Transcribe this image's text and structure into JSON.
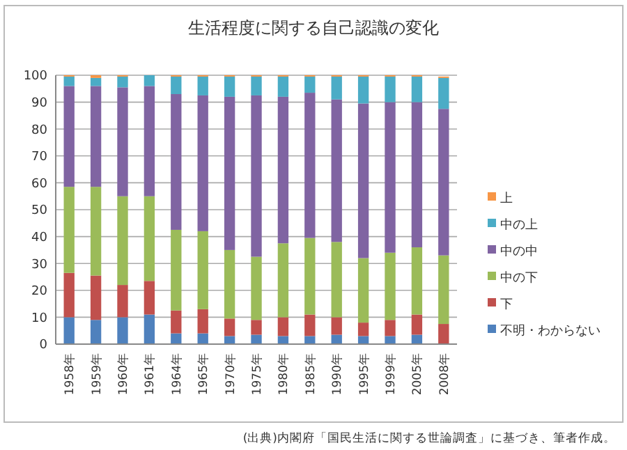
{
  "chart_data": {
    "type": "bar",
    "title": "生活程度に関する自己認識の変化",
    "stacked": true,
    "categories": [
      "1958年",
      "1959年",
      "1960年",
      "1961年",
      "1964年",
      "1965年",
      "1970年",
      "1975年",
      "1980年",
      "1985年",
      "1990年",
      "1995年",
      "1999年",
      "2005年",
      "2008年"
    ],
    "series": [
      {
        "name": "不明・わからない",
        "color": "#4f81bd",
        "values": [
          10,
          9,
          10,
          11,
          4,
          4,
          3,
          3.5,
          3,
          3,
          3.5,
          3,
          3,
          3.5,
          null
        ]
      },
      {
        "name": "下",
        "color": "#c0504d",
        "values": [
          16.5,
          16.5,
          12,
          12.5,
          8.5,
          9,
          6.5,
          5.5,
          7,
          8,
          6.5,
          5,
          6,
          7.5,
          7.5
        ]
      },
      {
        "name": "中の下",
        "color": "#9bbb59",
        "values": [
          32,
          33,
          33,
          31.5,
          30,
          29,
          25.5,
          23.5,
          27.5,
          28.5,
          28,
          24,
          25,
          25,
          25.5
        ]
      },
      {
        "name": "中の中",
        "color": "#8064a2",
        "values": [
          37.5,
          37.5,
          40.5,
          41,
          50.5,
          50.5,
          57,
          60,
          54.5,
          54,
          53,
          57.5,
          56,
          54,
          54.5
        ]
      },
      {
        "name": "中の上",
        "color": "#4bacc6",
        "values": [
          3.5,
          3,
          4,
          4,
          6.5,
          7,
          7.5,
          7,
          7.5,
          6,
          8.5,
          10,
          9.5,
          9.5,
          11.5
        ]
      },
      {
        "name": "上",
        "color": "#f79646",
        "values": [
          0.5,
          1,
          0.5,
          0,
          0.5,
          0.5,
          0.5,
          0.5,
          0.5,
          0.5,
          0.5,
          0.5,
          0.5,
          0.5,
          0.5
        ]
      }
    ],
    "ylim": [
      0,
      100
    ],
    "yticks": [
      0,
      10,
      20,
      30,
      40,
      50,
      60,
      70,
      80,
      90,
      100
    ],
    "grid": "y",
    "legend": "right",
    "annotations": [
      "(出典)内閣府「国民生活に関する世論調査」に基づき、筆者作成。"
    ]
  }
}
